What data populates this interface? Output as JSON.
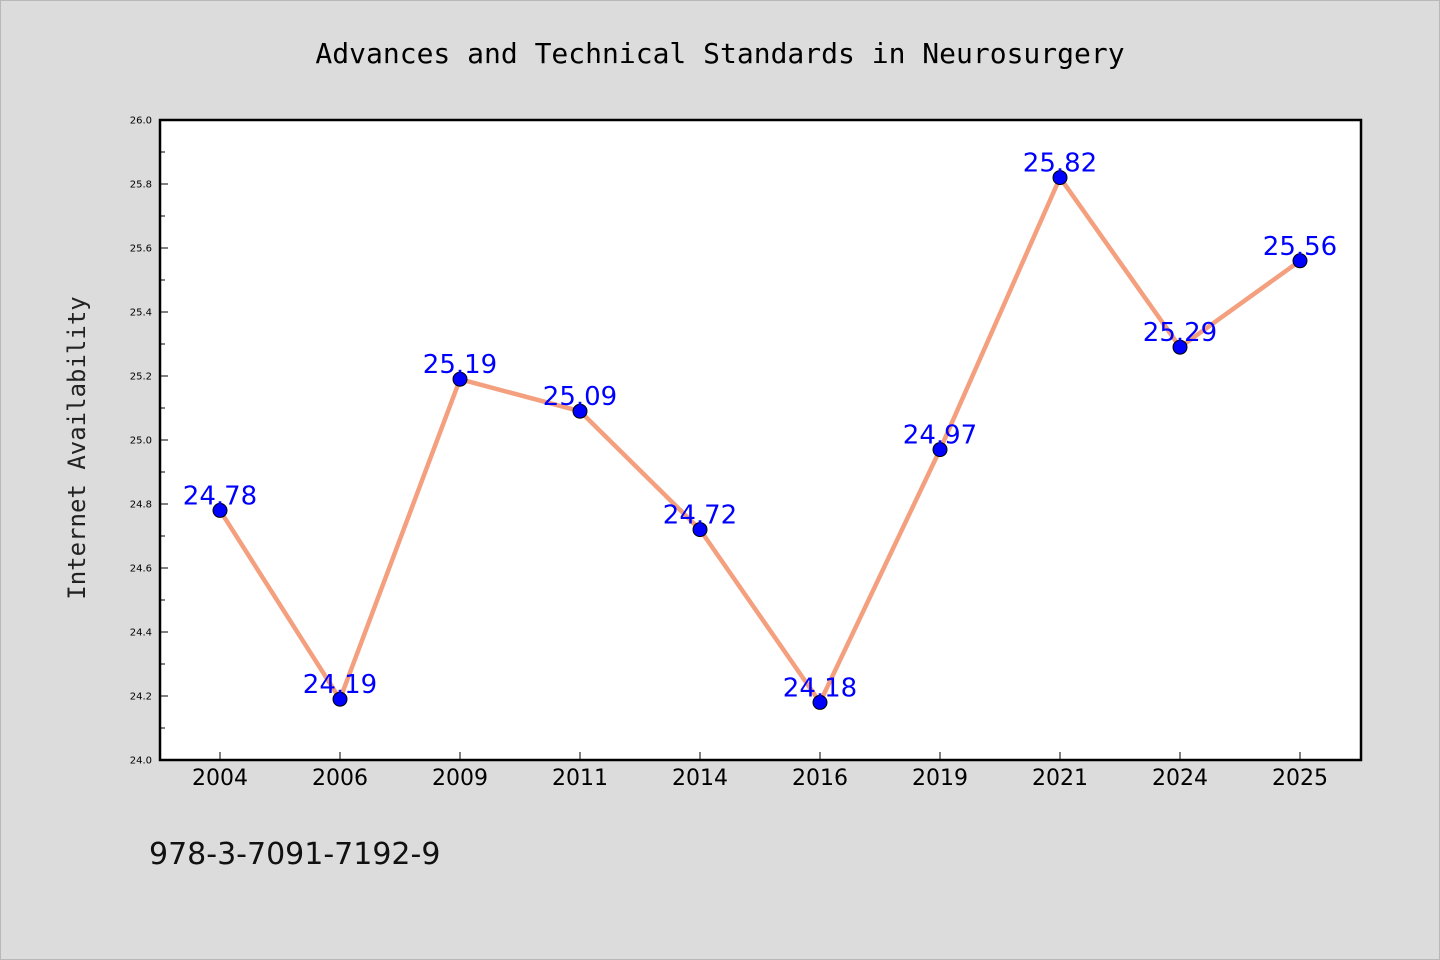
{
  "chart_data": {
    "type": "line",
    "title": "Advances and Technical Standards in Neurosurgery",
    "xlabel": "",
    "ylabel": "Internet Availability",
    "categories": [
      "2004",
      "2006",
      "2009",
      "2011",
      "2014",
      "2016",
      "2019",
      "2021",
      "2024",
      "2025"
    ],
    "values": [
      24.78,
      24.19,
      25.19,
      25.09,
      24.72,
      24.18,
      24.97,
      25.82,
      25.29,
      25.56
    ],
    "data_labels": [
      "24.78",
      "24.19",
      "25.19",
      "25.09",
      "24.72",
      "24.18",
      "24.97",
      "25.82",
      "25.29",
      "25.56"
    ],
    "ylim": [
      24.0,
      26.0
    ],
    "yticks": [
      "24.0",
      "24.2",
      "24.4",
      "24.6",
      "24.8",
      "25.0",
      "25.2",
      "25.4",
      "25.6",
      "25.8",
      "26.0"
    ],
    "grid": false,
    "line_color": "#f4a07f",
    "marker_color": "#0000ff"
  },
  "footer": {
    "isbn": "978-3-7091-7192-9"
  }
}
